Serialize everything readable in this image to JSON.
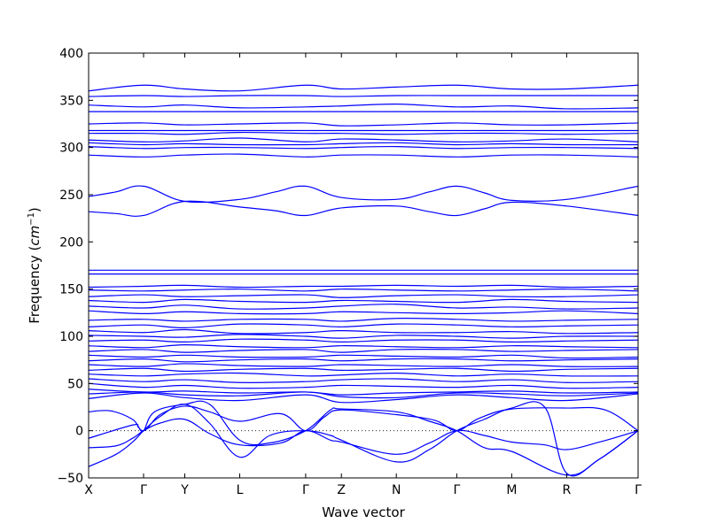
{
  "chart_data": {
    "type": "line",
    "title": "",
    "xlabel": "Wave vector",
    "ylabel": "Frequency (",
    "ylabel_math_base": "cm",
    "ylabel_math_exp": "−1",
    "ylabel_suffix": ")",
    "ylim": [
      -50,
      400
    ],
    "yticks": [
      -50,
      0,
      50,
      100,
      150,
      200,
      250,
      300,
      350,
      400
    ],
    "ytick_labels": [
      "−50",
      "0",
      "50",
      "100",
      "150",
      "200",
      "250",
      "300",
      "350",
      "400"
    ],
    "path_points": [
      "X",
      "Γ",
      "Y",
      "L",
      "Γ",
      "Z",
      "N",
      "Γ",
      "M",
      "R",
      "Γ"
    ],
    "path_positions": [
      0,
      1,
      1.75,
      2.75,
      3.95,
      4.6,
      5.6,
      6.7,
      7.7,
      8.7,
      10
    ],
    "zero_line": "dotted",
    "grid": false,
    "line_color": "#0000ff",
    "series": [
      {
        "x": [
          0,
          1,
          1.75,
          2.75,
          3.95,
          4.6,
          5.6,
          6.7,
          7.7,
          8.7,
          10
        ],
        "y": [
          360,
          366,
          362,
          360,
          366,
          362,
          364,
          366,
          362,
          362,
          366
        ]
      },
      {
        "x": [
          0,
          1,
          1.75,
          2.75,
          3.95,
          4.6,
          5.6,
          6.7,
          7.7,
          8.7,
          10
        ],
        "y": [
          354,
          355,
          354,
          355,
          355,
          354,
          355,
          355,
          355,
          355,
          355
        ]
      },
      {
        "x": [
          0,
          1,
          1.75,
          2.75,
          3.95,
          4.6,
          5.6,
          6.7,
          7.7,
          8.7,
          10
        ],
        "y": [
          345,
          343,
          345,
          342,
          343,
          344,
          346,
          343,
          344,
          341,
          342
        ]
      },
      {
        "x": [
          0,
          1,
          1.75,
          2.75,
          3.95,
          4.6,
          5.6,
          6.7,
          7.7,
          8.7,
          10
        ],
        "y": [
          338,
          338,
          338,
          338,
          338,
          338,
          338,
          338,
          338,
          338,
          338
        ]
      },
      {
        "x": [
          0,
          1,
          1.75,
          2.75,
          3.95,
          4.6,
          5.6,
          6.7,
          7.7,
          8.7,
          10
        ],
        "y": [
          325,
          326,
          324,
          325,
          326,
          323,
          324,
          326,
          324,
          324,
          326
        ]
      },
      {
        "x": [
          0,
          1,
          1.75,
          2.75,
          3.95,
          4.6,
          5.6,
          6.7,
          7.7,
          8.7,
          10
        ],
        "y": [
          318,
          318,
          318,
          318,
          318,
          318,
          318,
          318,
          318,
          318,
          318
        ]
      },
      {
        "x": [
          0,
          1,
          1.75,
          2.75,
          3.95,
          4.6,
          5.6,
          6.7,
          7.7,
          8.7,
          10
        ],
        "y": [
          315,
          315,
          314,
          316,
          315,
          315,
          314,
          315,
          315,
          314,
          315
        ]
      },
      {
        "x": [
          0,
          1,
          1.75,
          2.75,
          3.95,
          4.6,
          5.6,
          6.7,
          7.7,
          8.7,
          10
        ],
        "y": [
          308,
          306,
          307,
          310,
          306,
          309,
          308,
          306,
          307,
          309,
          306
        ]
      },
      {
        "x": [
          0,
          1,
          1.75,
          2.75,
          3.95,
          4.6,
          5.6,
          6.7,
          7.7,
          8.7,
          10
        ],
        "y": [
          305,
          303,
          304,
          303,
          303,
          304,
          305,
          303,
          304,
          303,
          303
        ]
      },
      {
        "x": [
          0,
          1,
          1.75,
          2.75,
          3.95,
          4.6,
          5.6,
          6.7,
          7.7,
          8.7,
          10
        ],
        "y": [
          301,
          299,
          300,
          300,
          299,
          300,
          301,
          299,
          300,
          300,
          299
        ]
      },
      {
        "x": [
          0,
          1,
          1.75,
          2.75,
          3.95,
          4.6,
          5.6,
          6.7,
          7.7,
          8.7,
          10
        ],
        "y": [
          292,
          290,
          292,
          293,
          290,
          292,
          292,
          290,
          292,
          292,
          290
        ]
      },
      {
        "x": [
          0,
          0.5,
          1,
          1.75,
          2.75,
          3.4,
          3.95,
          4.6,
          5.6,
          6.2,
          6.7,
          7.2,
          7.7,
          8.7,
          10
        ],
        "y": [
          248,
          253,
          259,
          243,
          245,
          253,
          259,
          247,
          245,
          253,
          259,
          252,
          244,
          245,
          259
        ]
      },
      {
        "x": [
          0,
          0.5,
          1,
          1.75,
          2.75,
          3.4,
          3.95,
          4.6,
          5.6,
          6.2,
          6.7,
          7.2,
          7.7,
          8.7,
          10
        ],
        "y": [
          232,
          230,
          228,
          243,
          237,
          233,
          228,
          236,
          238,
          232,
          228,
          235,
          242,
          238,
          228
        ]
      },
      {
        "x": [
          0,
          1,
          1.75,
          2.75,
          3.95,
          4.6,
          5.6,
          6.7,
          7.7,
          8.7,
          10
        ],
        "y": [
          170,
          170,
          170,
          170,
          170,
          170,
          170,
          170,
          170,
          170,
          170
        ]
      },
      {
        "x": [
          0,
          1,
          1.75,
          2.75,
          3.95,
          4.6,
          5.6,
          6.7,
          7.7,
          8.7,
          10
        ],
        "y": [
          166,
          166,
          166,
          166,
          166,
          166,
          166,
          166,
          166,
          166,
          166
        ]
      },
      {
        "x": [
          0,
          1,
          1.75,
          2.75,
          3.95,
          4.6,
          5.6,
          6.7,
          7.7,
          8.7,
          10
        ],
        "y": [
          152,
          153,
          154,
          152,
          153,
          153,
          154,
          153,
          154,
          152,
          153
        ]
      },
      {
        "x": [
          0,
          1,
          1.75,
          2.75,
          3.95,
          4.6,
          5.6,
          6.7,
          7.7,
          8.7,
          10
        ],
        "y": [
          149,
          148,
          149,
          150,
          148,
          150,
          149,
          148,
          149,
          150,
          148
        ]
      },
      {
        "x": [
          0,
          1,
          1.75,
          2.75,
          3.95,
          4.6,
          5.6,
          6.7,
          7.7,
          8.7,
          10
        ],
        "y": [
          142,
          144,
          142,
          143,
          144,
          141,
          143,
          144,
          142,
          142,
          144
        ]
      },
      {
        "x": [
          0,
          1,
          1.75,
          2.75,
          3.95,
          4.6,
          5.6,
          6.7,
          7.7,
          8.7,
          10
        ],
        "y": [
          138,
          136,
          139,
          137,
          136,
          138,
          137,
          136,
          139,
          137,
          136
        ]
      },
      {
        "x": [
          0,
          1,
          1.75,
          2.75,
          3.95,
          4.6,
          5.6,
          6.7,
          7.7,
          8.7,
          10
        ],
        "y": [
          132,
          130,
          133,
          129,
          130,
          132,
          134,
          130,
          131,
          129,
          130
        ]
      },
      {
        "x": [
          0,
          1,
          1.75,
          2.75,
          3.95,
          4.6,
          5.6,
          6.7,
          7.7,
          8.7,
          10
        ],
        "y": [
          127,
          124,
          126,
          124,
          124,
          126,
          125,
          124,
          125,
          127,
          124
        ]
      },
      {
        "x": [
          0,
          1,
          1.75,
          2.75,
          3.95,
          4.6,
          5.6,
          6.7,
          7.7,
          8.7,
          10
        ],
        "y": [
          117,
          118,
          116,
          118,
          118,
          116,
          119,
          118,
          116,
          117,
          118
        ]
      },
      {
        "x": [
          0,
          1,
          1.75,
          2.75,
          3.95,
          4.6,
          5.6,
          6.7,
          7.7,
          8.7,
          10
        ],
        "y": [
          110,
          112,
          109,
          113,
          112,
          110,
          113,
          112,
          110,
          111,
          112
        ]
      },
      {
        "x": [
          0,
          1,
          1.75,
          2.75,
          3.95,
          4.6,
          5.6,
          6.7,
          7.7,
          8.7,
          10
        ],
        "y": [
          106,
          104,
          107,
          103,
          104,
          106,
          104,
          104,
          105,
          103,
          104
        ]
      },
      {
        "x": [
          0,
          1,
          1.75,
          2.75,
          3.95,
          4.6,
          5.6,
          6.7,
          7.7,
          8.7,
          10
        ],
        "y": [
          101,
          100,
          99,
          102,
          100,
          98,
          101,
          100,
          98,
          100,
          100
        ]
      },
      {
        "x": [
          0,
          1,
          1.75,
          2.75,
          3.95,
          4.6,
          5.6,
          6.7,
          7.7,
          8.7,
          10
        ],
        "y": [
          95,
          96,
          94,
          97,
          96,
          94,
          96,
          96,
          94,
          95,
          96
        ]
      },
      {
        "x": [
          0,
          1,
          1.75,
          2.75,
          3.95,
          4.6,
          5.6,
          6.7,
          7.7,
          8.7,
          10
        ],
        "y": [
          90,
          88,
          91,
          89,
          88,
          90,
          89,
          88,
          90,
          89,
          88
        ]
      },
      {
        "x": [
          0,
          1,
          1.75,
          2.75,
          3.95,
          4.6,
          5.6,
          6.7,
          7.7,
          8.7,
          10
        ],
        "y": [
          84,
          86,
          83,
          85,
          86,
          83,
          86,
          86,
          84,
          85,
          86
        ]
      },
      {
        "x": [
          0,
          1,
          1.75,
          2.75,
          3.95,
          4.6,
          5.6,
          6.7,
          7.7,
          8.7,
          10
        ],
        "y": [
          80,
          78,
          80,
          78,
          78,
          80,
          79,
          78,
          80,
          77,
          78
        ]
      },
      {
        "x": [
          0,
          1,
          1.75,
          2.75,
          3.95,
          4.6,
          5.6,
          6.7,
          7.7,
          8.7,
          10
        ],
        "y": [
          74,
          76,
          73,
          75,
          76,
          74,
          76,
          76,
          74,
          75,
          76
        ]
      },
      {
        "x": [
          0,
          1,
          1.75,
          2.75,
          3.95,
          4.6,
          5.6,
          6.7,
          7.7,
          8.7,
          10
        ],
        "y": [
          70,
          68,
          71,
          69,
          68,
          70,
          69,
          68,
          70,
          68,
          68
        ]
      },
      {
        "x": [
          0,
          1,
          1.75,
          2.75,
          3.95,
          4.6,
          5.6,
          6.7,
          7.7,
          8.7,
          10
        ],
        "y": [
          64,
          66,
          63,
          65,
          66,
          64,
          65,
          66,
          63,
          65,
          66
        ]
      },
      {
        "x": [
          0,
          1,
          1.75,
          2.75,
          3.95,
          4.6,
          5.6,
          6.7,
          7.7,
          8.7,
          10
        ],
        "y": [
          60,
          58,
          60,
          61,
          58,
          59,
          61,
          58,
          60,
          58,
          58
        ]
      },
      {
        "x": [
          0,
          1,
          1.75,
          2.75,
          3.95,
          4.6,
          5.6,
          6.7,
          7.7,
          8.7,
          10
        ],
        "y": [
          55,
          52,
          54,
          51,
          52,
          54,
          55,
          52,
          54,
          51,
          52
        ]
      },
      {
        "x": [
          0,
          1,
          1.75,
          2.75,
          3.95,
          4.6,
          5.6,
          6.7,
          7.7,
          8.7,
          10
        ],
        "y": [
          50,
          46,
          48,
          45,
          46,
          48,
          47,
          46,
          48,
          45,
          46
        ]
      },
      {
        "x": [
          0,
          1,
          1.75,
          2.75,
          3.95,
          4.6,
          5.6,
          6.7,
          7.7,
          8.7,
          10
        ],
        "y": [
          44,
          41,
          42,
          40,
          41,
          38,
          40,
          41,
          42,
          40,
          41
        ]
      },
      {
        "x": [
          0,
          1,
          1.75,
          2.75,
          3.95,
          4.6,
          5.6,
          6.7,
          7.7,
          8.7,
          10
        ],
        "y": [
          39,
          41,
          38,
          37,
          41,
          36,
          35,
          40,
          39,
          37,
          40
        ]
      },
      {
        "x": [
          0,
          1,
          1.75,
          2.75,
          3.95,
          4.6,
          5.6,
          6.7,
          7.7,
          8.7,
          10
        ],
        "y": [
          34,
          40,
          35,
          32,
          38,
          30,
          33,
          38,
          35,
          32,
          39
        ]
      },
      {
        "x": [
          0,
          0.4,
          0.8,
          1,
          1.3,
          1.75,
          2.2,
          2.75,
          3.5,
          3.95,
          4.3,
          4.6,
          5.6,
          6.3,
          6.7,
          7.1,
          7.7,
          8.7,
          9.4,
          10
        ],
        "y": [
          20,
          21,
          12,
          0,
          17,
          26,
          20,
          10,
          18,
          0,
          15,
          22,
          17,
          11,
          0,
          13,
          23,
          24,
          22,
          0
        ]
      },
      {
        "x": [
          0,
          0.5,
          0.8,
          1,
          1.3,
          1.75,
          2.2,
          2.75,
          3.5,
          3.95,
          4.4,
          4.6,
          5.6,
          6.2,
          6.7,
          7.2,
          7.7,
          8.3,
          8.7,
          9.3,
          10
        ],
        "y": [
          -18,
          -16,
          -8,
          0,
          8,
          12,
          -3,
          -15,
          -13,
          0,
          -10,
          -12,
          -25,
          -13,
          0,
          -5,
          -12,
          -15,
          -20,
          -12,
          0
        ]
      },
      {
        "x": [
          0,
          0.5,
          0.8,
          1,
          1.3,
          1.75,
          2.2,
          2.75,
          3.3,
          3.95,
          4.4,
          4.6,
          5.6,
          6.2,
          6.7,
          7.2,
          7.7,
          8.3,
          8.7,
          9.3,
          10
        ],
        "y": [
          -38,
          -25,
          -12,
          0,
          15,
          28,
          8,
          -28,
          -5,
          0,
          -5,
          -10,
          -33,
          -20,
          0,
          12,
          24,
          25,
          -45,
          -30,
          0
        ]
      },
      {
        "x": [
          0,
          0.8,
          0.9,
          1,
          1.2,
          1.75,
          2.2,
          2.75,
          3.3,
          3.95,
          4.4,
          4.6,
          5.6,
          6.2,
          6.7,
          7.2,
          7.7,
          8.7,
          9.3,
          10
        ],
        "y": [
          -8,
          6,
          4,
          0,
          20,
          28,
          28,
          -10,
          -13,
          0,
          22,
          23,
          20,
          10,
          0,
          -18,
          -22,
          -47,
          -30,
          0
        ]
      }
    ]
  }
}
